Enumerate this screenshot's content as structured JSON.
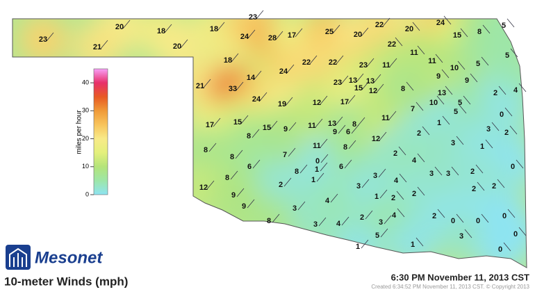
{
  "map": {
    "title": "10-meter Winds (mph)",
    "logo": "Mesonet",
    "timestamp": "6:30 PM November 11, 2013 CST",
    "created": "Created 6:34:52 PM November 11, 2013 CST. © Copyright 2013",
    "colorbar": {
      "label": "miles per hour",
      "lim": [
        0,
        45
      ],
      "ticks": [
        0,
        10,
        20,
        30,
        40
      ],
      "colors": [
        "#8ee4f2",
        "#9de6a8",
        "#b4e47a",
        "#e4f07c",
        "#f8ea88",
        "#f8c45c",
        "#f09a38",
        "#e85a24",
        "#e8306a",
        "#f8a0f8"
      ]
    },
    "stations": {
      "values": [
        23,
        20,
        18,
        21,
        20,
        23,
        18,
        24,
        28,
        17,
        25,
        20,
        22,
        20,
        24,
        15,
        8,
        5,
        5,
        22,
        11,
        11,
        10,
        5,
        18,
        24,
        22,
        22,
        23,
        11,
        9,
        9,
        14,
        23,
        13,
        13,
        15,
        12,
        8,
        13,
        2,
        4,
        21,
        33,
        24,
        19,
        12,
        17,
        7,
        10,
        5,
        5,
        0,
        17,
        15,
        15,
        9,
        11,
        13,
        8,
        9,
        6,
        11,
        1,
        3,
        2,
        2,
        8,
        8,
        11,
        12,
        8,
        7,
        3,
        1,
        8,
        0,
        2,
        4,
        6,
        1,
        6,
        8,
        3,
        3,
        3,
        2,
        0,
        8,
        1,
        4,
        2,
        3,
        12,
        9,
        2,
        2,
        1,
        2,
        2,
        4,
        9,
        3,
        2,
        3,
        4,
        2,
        0,
        0,
        0,
        8,
        3,
        4,
        5,
        1,
        3,
        0,
        1,
        0
      ]
    }
  }
}
